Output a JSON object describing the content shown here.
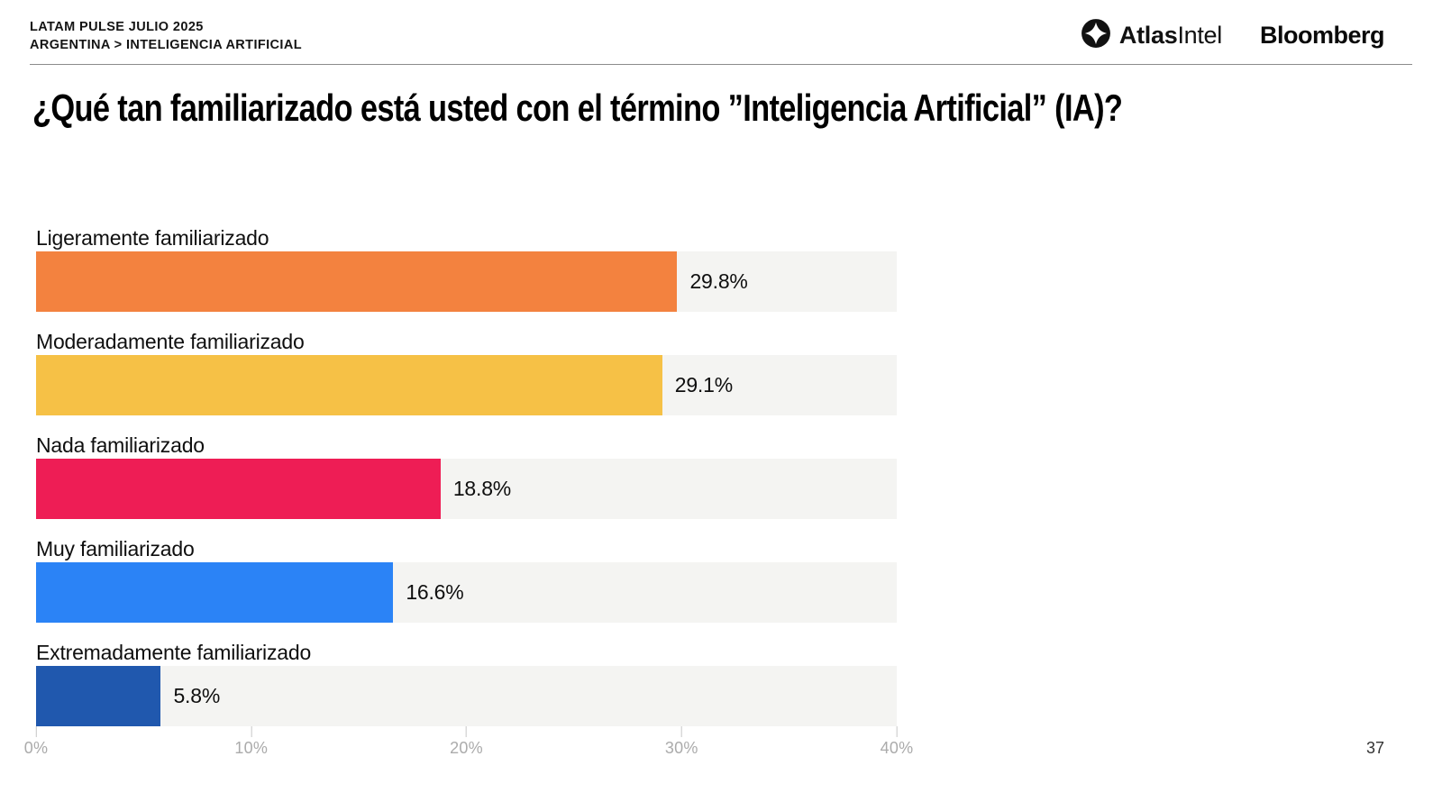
{
  "header": {
    "line1": "LATAM PULSE JULIO 2025",
    "line2": "ARGENTINA > INTELIGENCIA ARTIFICIAL"
  },
  "logos": {
    "atlasintel_bold": "Atlas",
    "atlasintel_regular": "Intel",
    "bloomberg": "Bloomberg"
  },
  "title": "¿Qué tan familiarizado está usted con el término ”Inteligencia Artificial” (IA)?",
  "chart_data": {
    "type": "bar",
    "orientation": "horizontal",
    "title": "¿Qué tan familiarizado está usted con el término ”Inteligencia Artificial” (IA)?",
    "categories": [
      "Ligeramente familiarizado",
      "Moderadamente familiarizado",
      "Nada familiarizado",
      "Muy familiarizado",
      "Extremadamente familiarizado"
    ],
    "values": [
      29.8,
      29.1,
      18.8,
      16.6,
      5.8
    ],
    "xlabel": "",
    "ylabel": "",
    "xlim": [
      0,
      40
    ],
    "grid": false,
    "legend": false,
    "track_color": "#f4f4f2",
    "x_ticks": [
      "0%",
      "10%",
      "20%",
      "30%",
      "40%"
    ],
    "rows": [
      {
        "label": "Ligeramente familiarizado",
        "value": 29.8,
        "display": "29.8%",
        "color": "#f3823f"
      },
      {
        "label": "Moderadamente familiarizado",
        "value": 29.1,
        "display": "29.1%",
        "color": "#f6c146"
      },
      {
        "label": "Nada familiarizado",
        "value": 18.8,
        "display": "18.8%",
        "color": "#ee1d55"
      },
      {
        "label": "Muy familiarizado",
        "value": 16.6,
        "display": "16.6%",
        "color": "#2b83f6"
      },
      {
        "label": "Extremadamente familiarizado",
        "value": 5.8,
        "display": "5.8%",
        "color": "#2058ae"
      }
    ]
  },
  "page_number": "37"
}
